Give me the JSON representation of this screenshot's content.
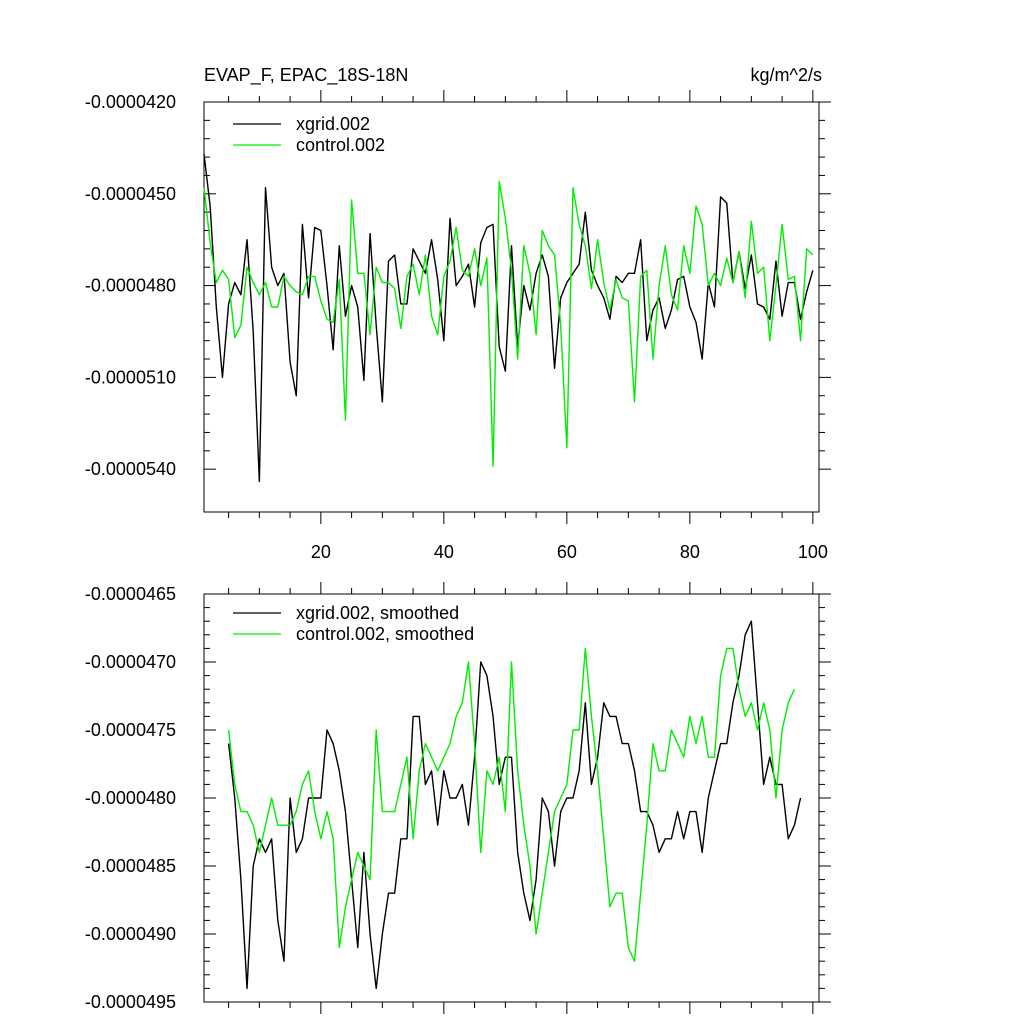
{
  "chart_data": [
    {
      "type": "line",
      "title": "EVAP_F, EPAC_18S-18N",
      "units": "kg/m^2/s",
      "xlim": [
        1,
        101
      ],
      "ylim": [
        -5.54e-05,
        -4.2e-05
      ],
      "xticks": [
        20,
        40,
        60,
        80,
        100
      ],
      "yticks": [
        -4.2e-05,
        -4.5e-05,
        -4.8e-05,
        -5.1e-05,
        -5.4e-05
      ],
      "ytick_labels": [
        "-0.0000420",
        "-0.0000450",
        "-0.0000480",
        "-0.0000510",
        "-0.0000540"
      ],
      "legend_position": "top-left",
      "series": [
        {
          "name": "xgrid.002",
          "color": "#000000",
          "x_start": 1,
          "values": [
            -4.37e-05,
            -4.54e-05,
            -4.87e-05,
            -5.1e-05,
            -4.86e-05,
            -4.79e-05,
            -4.83e-05,
            -4.65e-05,
            -4.95e-05,
            -5.44e-05,
            -4.48e-05,
            -4.74e-05,
            -4.8e-05,
            -4.76e-05,
            -5.05e-05,
            -5.16e-05,
            -4.6e-05,
            -4.84e-05,
            -4.61e-05,
            -4.62e-05,
            -4.8e-05,
            -5.01e-05,
            -4.67e-05,
            -4.9e-05,
            -4.8e-05,
            -4.87e-05,
            -5.11e-05,
            -4.63e-05,
            -4.93e-05,
            -5.18e-05,
            -4.72e-05,
            -4.7e-05,
            -4.86e-05,
            -4.86e-05,
            -4.68e-05,
            -4.72e-05,
            -4.76e-05,
            -4.65e-05,
            -4.78e-05,
            -4.98e-05,
            -4.58e-05,
            -4.8e-05,
            -4.77e-05,
            -4.73e-05,
            -4.87e-05,
            -4.66e-05,
            -4.61e-05,
            -4.6e-05,
            -5e-05,
            -5.08e-05,
            -4.67e-05,
            -5e-05,
            -4.8e-05,
            -4.88e-05,
            -4.76e-05,
            -4.7e-05,
            -4.77e-05,
            -5.07e-05,
            -4.84e-05,
            -4.79e-05,
            -4.76e-05,
            -4.73e-05,
            -4.56e-05,
            -4.75e-05,
            -4.8e-05,
            -4.84e-05,
            -4.91e-05,
            -4.77e-05,
            -4.79e-05,
            -4.76e-05,
            -4.76e-05,
            -4.65e-05,
            -4.98e-05,
            -4.88e-05,
            -4.84e-05,
            -4.94e-05,
            -4.88e-05,
            -4.78e-05,
            -4.77e-05,
            -4.87e-05,
            -4.92e-05,
            -5.04e-05,
            -4.79e-05,
            -4.87e-05,
            -4.51e-05,
            -4.53e-05,
            -4.79e-05,
            -4.69e-05,
            -4.81e-05,
            -4.7e-05,
            -4.86e-05,
            -4.87e-05,
            -4.91e-05,
            -4.72e-05,
            -4.9e-05,
            -4.79e-05,
            -4.79e-05,
            -4.91e-05,
            -4.82e-05,
            -4.75e-05
          ]
        },
        {
          "name": "control.002",
          "color": "#00ee00",
          "x_start": 1,
          "values": [
            -4.48e-05,
            -4.66e-05,
            -4.79e-05,
            -4.75e-05,
            -4.78e-05,
            -4.97e-05,
            -4.93e-05,
            -4.74e-05,
            -4.79e-05,
            -4.83e-05,
            -4.79e-05,
            -4.87e-05,
            -4.87e-05,
            -4.77e-05,
            -4.8e-05,
            -4.82e-05,
            -4.83e-05,
            -4.77e-05,
            -4.77e-05,
            -4.85e-05,
            -4.91e-05,
            -4.92e-05,
            -4.78e-05,
            -5.24e-05,
            -4.52e-05,
            -4.76e-05,
            -4.76e-05,
            -4.96e-05,
            -4.74e-05,
            -4.79e-05,
            -4.79e-05,
            -4.81e-05,
            -4.94e-05,
            -4.77e-05,
            -4.73e-05,
            -4.83e-05,
            -4.7e-05,
            -4.9e-05,
            -4.96e-05,
            -4.77e-05,
            -4.72e-05,
            -4.61e-05,
            -4.75e-05,
            -4.77e-05,
            -4.68e-05,
            -4.8e-05,
            -4.71e-05,
            -5.39e-05,
            -4.46e-05,
            -4.58e-05,
            -4.75e-05,
            -5.04e-05,
            -4.67e-05,
            -4.76e-05,
            -4.96e-05,
            -4.62e-05,
            -4.67e-05,
            -4.7e-05,
            -4.93e-05,
            -5.33e-05,
            -4.48e-05,
            -4.6e-05,
            -4.67e-05,
            -4.81e-05,
            -4.65e-05,
            -4.79e-05,
            -4.88e-05,
            -4.78e-05,
            -4.84e-05,
            -4.85e-05,
            -5.18e-05,
            -4.77e-05,
            -4.75e-05,
            -5.04e-05,
            -4.8e-05,
            -4.67e-05,
            -4.83e-05,
            -4.88e-05,
            -4.67e-05,
            -4.76e-05,
            -4.54e-05,
            -4.6e-05,
            -4.8e-05,
            -4.76e-05,
            -4.8e-05,
            -4.71e-05,
            -4.79e-05,
            -4.69e-05,
            -4.84e-05,
            -4.59e-05,
            -4.76e-05,
            -4.74e-05,
            -4.98e-05,
            -4.8e-05,
            -4.6e-05,
            -4.78e-05,
            -4.77e-05,
            -4.98e-05,
            -4.68e-05,
            -4.7e-05
          ]
        }
      ]
    },
    {
      "type": "line",
      "title": "",
      "xlim": [
        1,
        101
      ],
      "ylim": [
        -4.95e-05,
        -4.65e-05
      ],
      "xticks": [
        20,
        40,
        60,
        80,
        100
      ],
      "yticks": [
        -4.65e-05,
        -4.7e-05,
        -4.75e-05,
        -4.8e-05,
        -4.85e-05,
        -4.9e-05,
        -4.95e-05
      ],
      "ytick_labels": [
        "-0.0000465",
        "-0.0000470",
        "-0.0000475",
        "-0.0000480",
        "-0.0000485",
        "-0.0000490",
        "-0.0000495"
      ],
      "legend_position": "top-left",
      "series": [
        {
          "name": "xgrid.002, smoothed",
          "color": "#000000",
          "x_start": 5,
          "values": [
            -4.76e-05,
            -4.8e-05,
            -4.86e-05,
            -4.94e-05,
            -4.85e-05,
            -4.83e-05,
            -4.84e-05,
            -4.83e-05,
            -4.89e-05,
            -4.92e-05,
            -4.8e-05,
            -4.84e-05,
            -4.83e-05,
            -4.8e-05,
            -4.8e-05,
            -4.8e-05,
            -4.75e-05,
            -4.76e-05,
            -4.78e-05,
            -4.81e-05,
            -4.86e-05,
            -4.91e-05,
            -4.84e-05,
            -4.9e-05,
            -4.94e-05,
            -4.9e-05,
            -4.87e-05,
            -4.87e-05,
            -4.83e-05,
            -4.83e-05,
            -4.74e-05,
            -4.74e-05,
            -4.79e-05,
            -4.78e-05,
            -4.82e-05,
            -4.78e-05,
            -4.8e-05,
            -4.8e-05,
            -4.79e-05,
            -4.82e-05,
            -4.77e-05,
            -4.7e-05,
            -4.71e-05,
            -4.74e-05,
            -4.79e-05,
            -4.77e-05,
            -4.77e-05,
            -4.84e-05,
            -4.87e-05,
            -4.89e-05,
            -4.86e-05,
            -4.8e-05,
            -4.81e-05,
            -4.85e-05,
            -4.81e-05,
            -4.8e-05,
            -4.8e-05,
            -4.78e-05,
            -4.73e-05,
            -4.79e-05,
            -4.77e-05,
            -4.73e-05,
            -4.74e-05,
            -4.74e-05,
            -4.76e-05,
            -4.76e-05,
            -4.78e-05,
            -4.81e-05,
            -4.81e-05,
            -4.82e-05,
            -4.84e-05,
            -4.83e-05,
            -4.83e-05,
            -4.81e-05,
            -4.83e-05,
            -4.81e-05,
            -4.81e-05,
            -4.84e-05,
            -4.8e-05,
            -4.78e-05,
            -4.76e-05,
            -4.76e-05,
            -4.73e-05,
            -4.71e-05,
            -4.68e-05,
            -4.67e-05,
            -4.73e-05,
            -4.79e-05,
            -4.77e-05,
            -4.79e-05,
            -4.79e-05,
            -4.83e-05,
            -4.82e-05,
            -4.8e-05
          ]
        },
        {
          "name": "control.002, smoothed",
          "color": "#00ee00",
          "x_start": 5,
          "values": [
            -4.75e-05,
            -4.79e-05,
            -4.81e-05,
            -4.81e-05,
            -4.82e-05,
            -4.84e-05,
            -4.82e-05,
            -4.8e-05,
            -4.82e-05,
            -4.82e-05,
            -4.82e-05,
            -4.81e-05,
            -4.79e-05,
            -4.78e-05,
            -4.81e-05,
            -4.83e-05,
            -4.81e-05,
            -4.83e-05,
            -4.91e-05,
            -4.88e-05,
            -4.86e-05,
            -4.84e-05,
            -4.85e-05,
            -4.86e-05,
            -4.75e-05,
            -4.81e-05,
            -4.81e-05,
            -4.81e-05,
            -4.79e-05,
            -4.77e-05,
            -4.83e-05,
            -4.78e-05,
            -4.76e-05,
            -4.77e-05,
            -4.78e-05,
            -4.77e-05,
            -4.76e-05,
            -4.74e-05,
            -4.73e-05,
            -4.7e-05,
            -4.76e-05,
            -4.84e-05,
            -4.78e-05,
            -4.79e-05,
            -4.77e-05,
            -4.81e-05,
            -4.7e-05,
            -4.78e-05,
            -4.82e-05,
            -4.85e-05,
            -4.9e-05,
            -4.87e-05,
            -4.84e-05,
            -4.81e-05,
            -4.8e-05,
            -4.79e-05,
            -4.75e-05,
            -4.75e-05,
            -4.69e-05,
            -4.74e-05,
            -4.78e-05,
            -4.83e-05,
            -4.88e-05,
            -4.87e-05,
            -4.87e-05,
            -4.91e-05,
            -4.92e-05,
            -4.87e-05,
            -4.82e-05,
            -4.76e-05,
            -4.78e-05,
            -4.78e-05,
            -4.75e-05,
            -4.76e-05,
            -4.77e-05,
            -4.74e-05,
            -4.76e-05,
            -4.74e-05,
            -4.77e-05,
            -4.77e-05,
            -4.71e-05,
            -4.69e-05,
            -4.69e-05,
            -4.72e-05,
            -4.74e-05,
            -4.73e-05,
            -4.75e-05,
            -4.73e-05,
            -4.75e-05,
            -4.8e-05,
            -4.75e-05,
            -4.73e-05,
            -4.72e-05
          ]
        }
      ]
    }
  ]
}
